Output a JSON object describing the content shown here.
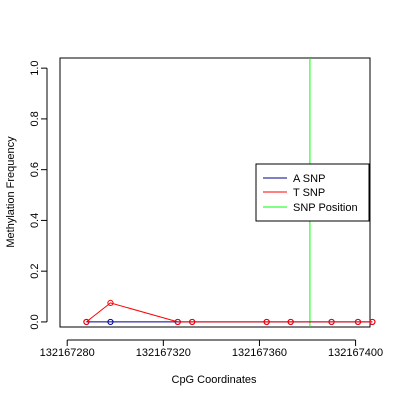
{
  "chart_data": {
    "type": "line",
    "title": "",
    "xlabel": "CpG Coordinates",
    "ylabel": "Methylation Frequency",
    "xlim": [
      132167277,
      132167406
    ],
    "ylim": [
      -0.02,
      1.04
    ],
    "xticks": [
      132167280,
      132167320,
      132167360,
      132167400
    ],
    "xtick_labels": [
      "132167280",
      "132167320",
      "132167360",
      "132167400"
    ],
    "yticks": [
      0.0,
      0.2,
      0.4,
      0.6,
      0.8,
      1.0
    ],
    "ytick_labels": [
      "0.0",
      "0.2",
      "0.4",
      "0.6",
      "0.8",
      "1.0"
    ],
    "grid": false,
    "legend_position": "right",
    "series": [
      {
        "name": "A SNP",
        "color": "#00008B",
        "x": [
          132167288,
          132167298,
          132167326,
          132167332,
          132167363,
          132167373,
          132167390,
          132167401,
          132167407
        ],
        "y": [
          0,
          0,
          0,
          0,
          0,
          0,
          0,
          0,
          0
        ]
      },
      {
        "name": "T SNP",
        "color": "#FF0000",
        "x": [
          132167288,
          132167298,
          132167326,
          132167332,
          132167363,
          132167373,
          132167390,
          132167401,
          132167407
        ],
        "y": [
          0,
          0.075,
          0,
          0,
          0,
          0,
          0,
          0,
          0
        ]
      }
    ],
    "vlines": [
      {
        "name": "SNP Position",
        "color": "#00FF00",
        "x": 132167381
      }
    ]
  }
}
